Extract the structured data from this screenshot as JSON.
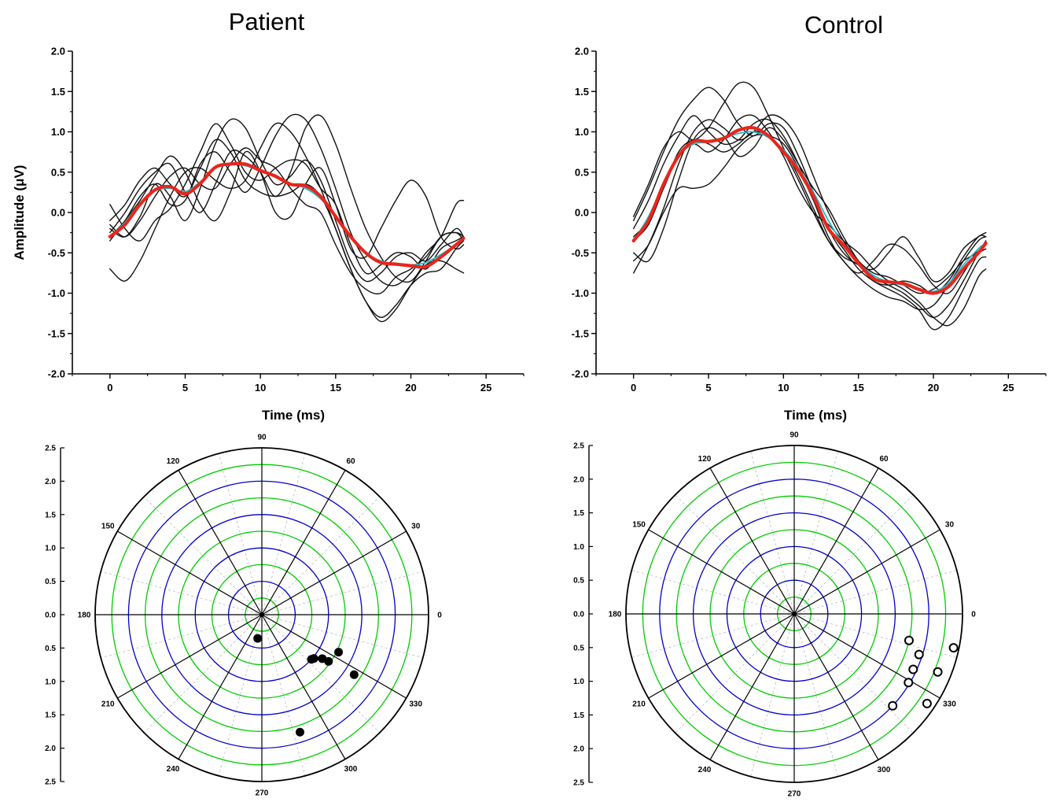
{
  "chart_data": [
    {
      "id": "patient-waveform",
      "type": "line",
      "title": "Patient",
      "xlabel": "Time (ms)",
      "ylabel": "Amplitude (μV)",
      "xlim": [
        -2.5,
        27.5
      ],
      "ylim": [
        -2,
        2
      ],
      "xticks": [
        0,
        5,
        10,
        15,
        20,
        25
      ],
      "yticks": [
        "2.0",
        "1.5",
        "1.0",
        "0.5",
        "0.0",
        "-0.5",
        "-1.0",
        "-1.5",
        "-2.0"
      ],
      "x": [
        0,
        1,
        2,
        3,
        4,
        5,
        6,
        7,
        8,
        9,
        10,
        11,
        12,
        13,
        14,
        15,
        16,
        17,
        18,
        19,
        20,
        21,
        22,
        23,
        23.5
      ],
      "series": [
        {
          "role": "trial",
          "color": "#111111",
          "values": [
            0.1,
            -0.2,
            -0.35,
            -0.1,
            0.05,
            0.35,
            0.75,
            1.1,
            0.85,
            0.5,
            0.4,
            0.55,
            0.65,
            0.6,
            0.3,
            0.1,
            -0.4,
            -0.75,
            -0.65,
            -0.5,
            -0.55,
            -0.7,
            -0.45,
            -0.35,
            -0.3
          ]
        },
        {
          "role": "trial",
          "color": "#111111",
          "values": [
            -0.7,
            -0.85,
            -0.6,
            -0.2,
            0.2,
            0.5,
            0.55,
            0.4,
            0.3,
            0.4,
            0.8,
            1.1,
            1.0,
            0.7,
            0.3,
            -0.2,
            -0.7,
            -1.1,
            -1.35,
            -1.2,
            -0.9,
            -0.65,
            -0.6,
            -0.7,
            -0.75
          ]
        },
        {
          "role": "trial",
          "color": "#111111",
          "values": [
            -0.25,
            0.0,
            0.3,
            0.5,
            0.6,
            0.25,
            0.0,
            0.35,
            0.75,
            0.7,
            0.5,
            0.2,
            0.5,
            1.05,
            1.2,
            0.85,
            0.3,
            -0.2,
            -0.55,
            -0.8,
            -0.85,
            -0.6,
            -0.3,
            -0.25,
            -0.3
          ]
        },
        {
          "role": "trial",
          "color": "#111111",
          "values": [
            -0.35,
            -0.1,
            0.15,
            0.45,
            0.7,
            0.5,
            0.1,
            -0.1,
            0.25,
            0.75,
            0.5,
            0.0,
            -0.05,
            0.35,
            0.55,
            0.1,
            -0.45,
            -0.55,
            -0.2,
            0.15,
            0.4,
            0.2,
            -0.3,
            -0.45,
            -0.4
          ]
        },
        {
          "role": "trial",
          "color": "#111111",
          "values": [
            -0.2,
            -0.3,
            -0.05,
            0.35,
            0.2,
            -0.1,
            0.3,
            0.85,
            1.15,
            1.05,
            0.65,
            0.35,
            0.45,
            0.65,
            0.4,
            -0.1,
            -0.6,
            -0.85,
            -0.75,
            -0.55,
            -0.5,
            -0.6,
            -0.4,
            -0.2,
            -0.3
          ]
        },
        {
          "role": "trial",
          "color": "#111111",
          "values": [
            -0.1,
            0.1,
            0.4,
            0.55,
            0.35,
            0.2,
            0.55,
            0.9,
            0.75,
            0.4,
            0.25,
            0.2,
            0.25,
            0.35,
            0.2,
            -0.2,
            -0.7,
            -1.1,
            -1.3,
            -1.15,
            -0.9,
            -0.75,
            -0.7,
            -0.45,
            -0.35
          ]
        },
        {
          "role": "trial",
          "color": "#111111",
          "values": [
            -0.3,
            -0.1,
            0.2,
            0.35,
            0.1,
            0.15,
            0.6,
            0.75,
            0.5,
            0.25,
            0.55,
            0.95,
            1.2,
            1.15,
            0.8,
            0.3,
            -0.25,
            -0.6,
            -0.85,
            -0.9,
            -0.75,
            -0.5,
            -0.3,
            0.1,
            0.15
          ]
        },
        {
          "role": "trial",
          "color": "#111111",
          "values": [
            -0.15,
            -0.3,
            -0.1,
            0.2,
            0.45,
            0.55,
            0.35,
            0.3,
            0.6,
            0.8,
            0.65,
            0.55,
            0.3,
            0.1,
            0.0,
            -0.4,
            -0.75,
            -0.95,
            -1.0,
            -0.8,
            -0.7,
            -0.55,
            -0.3,
            -0.25,
            -0.35
          ]
        },
        {
          "role": "fit",
          "color": "#22bbcc",
          "values": [
            -0.3,
            -0.12,
            0.12,
            0.27,
            0.3,
            0.26,
            0.38,
            0.55,
            0.6,
            0.58,
            0.52,
            0.45,
            0.36,
            0.3,
            0.17,
            -0.05,
            -0.3,
            -0.5,
            -0.6,
            -0.64,
            -0.65,
            -0.62,
            -0.52,
            -0.4,
            -0.33
          ]
        },
        {
          "role": "mean",
          "color": "#e8261c",
          "values": [
            -0.3,
            -0.15,
            0.1,
            0.28,
            0.32,
            0.23,
            0.36,
            0.56,
            0.6,
            0.6,
            0.52,
            0.45,
            0.35,
            0.33,
            0.2,
            -0.05,
            -0.3,
            -0.5,
            -0.62,
            -0.64,
            -0.66,
            -0.67,
            -0.55,
            -0.4,
            -0.32
          ]
        }
      ]
    },
    {
      "id": "control-waveform",
      "type": "line",
      "title": "Control",
      "xlabel": "Time (ms)",
      "xlim": [
        -2.5,
        27.5
      ],
      "ylim": [
        -2,
        2
      ],
      "xticks": [
        0,
        5,
        10,
        15,
        20,
        25
      ],
      "yticks": [
        "2.0",
        "1.5",
        "1.0",
        "0.5",
        "0.0",
        "-0.5",
        "-1.0",
        "-1.5",
        "-2.0"
      ],
      "x": [
        0,
        1,
        2,
        3,
        4,
        5,
        6,
        7,
        8,
        9,
        10,
        11,
        12,
        13,
        14,
        15,
        16,
        17,
        18,
        19,
        20,
        21,
        22,
        23,
        23.5
      ],
      "series": [
        {
          "role": "trial",
          "color": "#111111",
          "values": [
            -0.1,
            0.3,
            0.75,
            1.15,
            1.4,
            1.55,
            1.4,
            1.1,
            0.95,
            1.1,
            1.05,
            0.7,
            0.25,
            -0.2,
            -0.5,
            -0.65,
            -0.7,
            -0.5,
            -0.3,
            -0.55,
            -0.85,
            -0.75,
            -0.45,
            -0.3,
            -0.25
          ]
        },
        {
          "role": "trial",
          "color": "#111111",
          "values": [
            -0.75,
            -0.4,
            0.05,
            0.6,
            1.0,
            1.15,
            1.05,
            0.9,
            1.0,
            1.2,
            1.15,
            0.9,
            0.45,
            0.0,
            -0.35,
            -0.6,
            -0.75,
            -0.8,
            -0.9,
            -1.0,
            -0.95,
            -0.8,
            -0.6,
            -0.5,
            -0.45
          ]
        },
        {
          "role": "trial",
          "color": "#111111",
          "values": [
            -0.05,
            0.35,
            0.8,
            1.0,
            0.9,
            1.05,
            1.35,
            1.6,
            1.55,
            1.2,
            0.8,
            0.45,
            0.05,
            -0.35,
            -0.6,
            -0.8,
            -0.95,
            -1.05,
            -1.1,
            -1.2,
            -1.15,
            -0.9,
            -0.6,
            -0.35,
            -0.3
          ]
        },
        {
          "role": "trial",
          "color": "#111111",
          "values": [
            -0.5,
            -0.6,
            -0.2,
            0.4,
            0.9,
            1.05,
            0.95,
            0.7,
            0.8,
            1.05,
            0.9,
            0.6,
            0.3,
            0.05,
            -0.3,
            -0.6,
            -0.8,
            -0.9,
            -1.0,
            -1.15,
            -1.3,
            -1.15,
            -0.85,
            -0.5,
            -0.35
          ]
        },
        {
          "role": "trial",
          "color": "#111111",
          "values": [
            -0.3,
            -0.1,
            0.3,
            0.7,
            0.85,
            0.75,
            0.9,
            1.15,
            1.2,
            1.0,
            0.7,
            0.3,
            0.0,
            -0.15,
            -0.35,
            -0.5,
            -0.7,
            -0.85,
            -0.95,
            -1.1,
            -1.3,
            -1.4,
            -1.2,
            -0.8,
            -0.7
          ]
        },
        {
          "role": "trial",
          "color": "#111111",
          "values": [
            -0.2,
            0.15,
            0.6,
            0.95,
            1.2,
            1.0,
            0.85,
            0.9,
            1.1,
            1.15,
            0.95,
            0.6,
            0.15,
            -0.3,
            -0.6,
            -0.75,
            -0.6,
            -0.4,
            -0.45,
            -0.65,
            -0.9,
            -1.0,
            -0.75,
            -0.45,
            -0.4
          ]
        },
        {
          "role": "trial",
          "color": "#111111",
          "values": [
            -0.6,
            -0.4,
            0.0,
            0.3,
            0.3,
            0.35,
            0.55,
            0.8,
            0.95,
            0.95,
            0.85,
            0.55,
            0.15,
            -0.2,
            -0.45,
            -0.7,
            -0.85,
            -0.95,
            -1.05,
            -1.2,
            -1.45,
            -1.3,
            -0.95,
            -0.6,
            -0.55
          ]
        },
        {
          "role": "trial",
          "color": "#111111",
          "values": [
            -0.35,
            -0.15,
            0.3,
            0.75,
            0.9,
            0.85,
            0.75,
            0.85,
            1.0,
            0.95,
            0.75,
            0.4,
            0.0,
            -0.35,
            -0.55,
            -0.65,
            -0.85,
            -0.9,
            -0.85,
            -0.9,
            -1.0,
            -0.85,
            -0.55,
            -0.3,
            -0.3
          ]
        },
        {
          "role": "fit",
          "color": "#22bbcc",
          "values": [
            -0.35,
            -0.05,
            0.35,
            0.7,
            0.85,
            0.87,
            0.92,
            0.98,
            1.0,
            0.93,
            0.78,
            0.55,
            0.25,
            -0.1,
            -0.4,
            -0.62,
            -0.78,
            -0.86,
            -0.9,
            -0.95,
            -0.98,
            -0.88,
            -0.65,
            -0.45,
            -0.38
          ]
        },
        {
          "role": "mean",
          "color": "#e8261c",
          "values": [
            -0.35,
            -0.1,
            0.35,
            0.7,
            0.88,
            0.88,
            0.92,
            1.02,
            1.05,
            0.95,
            0.75,
            0.52,
            0.2,
            -0.2,
            -0.4,
            -0.63,
            -0.82,
            -0.86,
            -0.88,
            -0.95,
            -1.0,
            -0.92,
            -0.7,
            -0.5,
            -0.38
          ]
        }
      ]
    },
    {
      "id": "patient-polar",
      "type": "scatter",
      "coordinates": "polar",
      "rlim": [
        0,
        2.5
      ],
      "rings": [
        0.25,
        0.5,
        0.75,
        1.0,
        1.25,
        1.5,
        1.75,
        2.0,
        2.25,
        2.5
      ],
      "ring_colors": {
        "major": "#0000cc",
        "minor": "#00cc00",
        "outer": "#000000"
      },
      "angles": [
        0,
        30,
        60,
        90,
        120,
        150,
        180,
        210,
        240,
        270,
        300,
        330
      ],
      "yticks": [
        "2.5",
        "2.0",
        "1.5",
        "1.0",
        "0.5",
        "0.0",
        "0.5",
        "1.0",
        "1.5",
        "2.0",
        "2.5"
      ],
      "marker": "filled",
      "points": [
        {
          "angle": 260,
          "r": 0.36
        },
        {
          "angle": 318,
          "r": 1.0
        },
        {
          "angle": 320,
          "r": 1.02
        },
        {
          "angle": 324,
          "r": 1.12
        },
        {
          "angle": 325,
          "r": 1.22
        },
        {
          "angle": 334,
          "r": 1.28
        },
        {
          "angle": 327,
          "r": 1.65
        },
        {
          "angle": 288,
          "r": 1.85
        }
      ]
    },
    {
      "id": "control-polar",
      "type": "scatter",
      "coordinates": "polar",
      "rlim": [
        0,
        2.5
      ],
      "rings": [
        0.25,
        0.5,
        0.75,
        1.0,
        1.25,
        1.5,
        1.75,
        2.0,
        2.25,
        2.5
      ],
      "ring_colors": {
        "major": "#0000cc",
        "minor": "#00cc00",
        "outer": "#000000"
      },
      "angles": [
        0,
        30,
        60,
        90,
        120,
        150,
        180,
        210,
        240,
        270,
        300,
        330
      ],
      "yticks": [
        "2.5",
        "2.0",
        "1.5",
        "1.0",
        "0.5",
        "0.0",
        "0.5",
        "1.0",
        "1.5",
        "2.0",
        "2.5"
      ],
      "marker": "open",
      "points": [
        {
          "angle": 347,
          "r": 1.75
        },
        {
          "angle": 342,
          "r": 1.95
        },
        {
          "angle": 335,
          "r": 1.95
        },
        {
          "angle": 329,
          "r": 1.98
        },
        {
          "angle": 317,
          "r": 2.0
        },
        {
          "angle": 338,
          "r": 2.3
        },
        {
          "angle": 348,
          "r": 2.42
        },
        {
          "angle": 326,
          "r": 2.38
        }
      ]
    }
  ]
}
